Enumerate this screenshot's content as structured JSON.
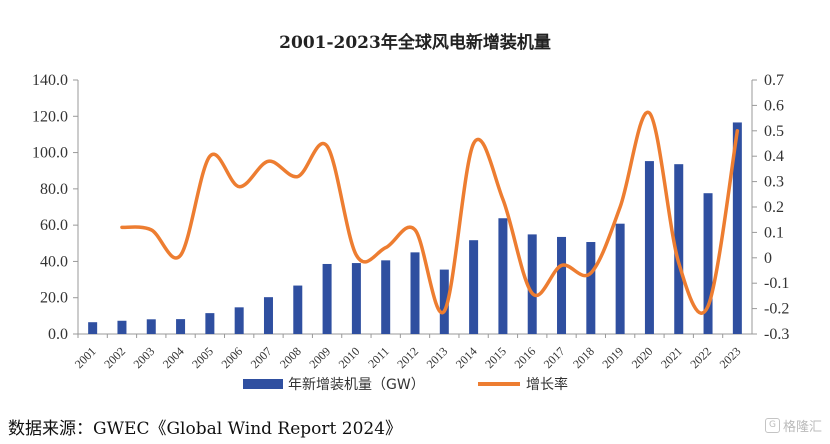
{
  "chart_data": {
    "type": "bar+line",
    "title": "2001-2023年全球风电新增装机量",
    "categories": [
      "2001",
      "2002",
      "2003",
      "2004",
      "2005",
      "2006",
      "2007",
      "2008",
      "2009",
      "2010",
      "2011",
      "2012",
      "2013",
      "2014",
      "2015",
      "2016",
      "2017",
      "2018",
      "2019",
      "2020",
      "2021",
      "2022",
      "2023"
    ],
    "series": [
      {
        "name": "年新增装机量（GW）",
        "type": "bar",
        "axis": "left",
        "color": "#2F4FA0",
        "values": [
          6.5,
          7.3,
          8.1,
          8.2,
          11.5,
          14.7,
          20.3,
          26.7,
          38.6,
          39.1,
          40.6,
          45.0,
          35.5,
          51.7,
          63.8,
          54.9,
          53.5,
          50.7,
          60.8,
          95.3,
          93.6,
          77.6,
          116.6
        ]
      },
      {
        "name": "增长率",
        "type": "line",
        "axis": "right",
        "color": "#ED7D31",
        "values": [
          null,
          0.12,
          0.11,
          0.01,
          0.4,
          0.28,
          0.38,
          0.32,
          0.44,
          0.01,
          0.04,
          0.11,
          -0.21,
          0.45,
          0.23,
          -0.14,
          -0.03,
          -0.06,
          0.2,
          0.57,
          -0.02,
          -0.19,
          0.5
        ]
      }
    ],
    "y_left": {
      "min": 0,
      "max": 140,
      "step": 20,
      "tick_labels": [
        "0.0",
        "20.0",
        "40.0",
        "60.0",
        "80.0",
        "100.0",
        "120.0",
        "140.0"
      ]
    },
    "y_right": {
      "min": -0.3,
      "max": 0.7,
      "step": 0.1,
      "tick_labels": [
        "-0.3",
        "-0.2",
        "-0.1",
        "0",
        "0.1",
        "0.2",
        "0.3",
        "0.4",
        "0.5",
        "0.6",
        "0.7"
      ]
    },
    "grid": false,
    "legend_position": "bottom"
  },
  "source_text": "数据来源：GWEC《Global Wind Report 2024》",
  "watermark_text": "格隆汇",
  "watermark_icon": "g-logo-icon"
}
